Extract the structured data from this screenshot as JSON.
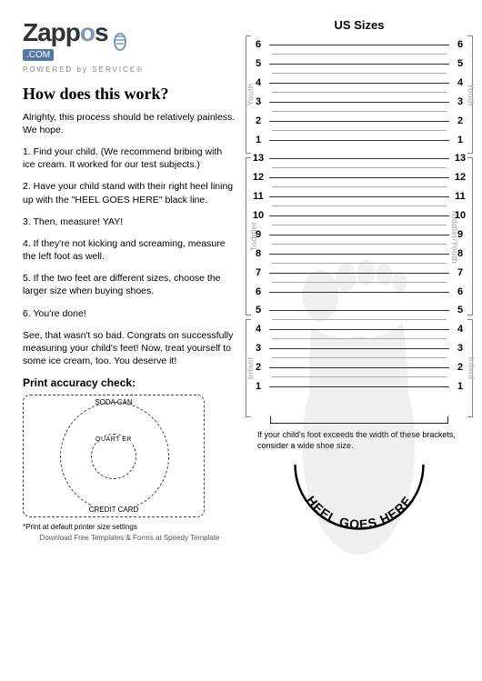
{
  "logo": {
    "brand": "Zapp",
    "accent_letter": "o",
    "brand_end": "s",
    "dotcom": ".COM",
    "tagline": "POWERED by SERVICE®"
  },
  "heading": "How does this work?",
  "intro": "Alrighty, this process should be relatively painless. We hope.",
  "steps": [
    "1. Find your child. (We recommend bribing with ice cream. It worked for our test subjects.)",
    "2. Have your child stand with their right heel lining up with the \"HEEL GOES HERE\" black line.",
    "3. Then, measure! YAY!",
    "4. If they're not kicking and screaming, measure the left foot as well.",
    "5. If the two feet are different sizes, choose the larger size when buying shoes.",
    "6. You're done!"
  ],
  "outro": "See, that wasn't so bad. Congrats on successfully measuring your child's feet! Now, treat yourself to some ice cream, too. You deserve it!",
  "accuracy": {
    "heading": "Print accuracy check:",
    "soda": "SODA CAN",
    "quarter": "QUART ER",
    "credit": "CREDIT CARD",
    "print_note": "*Print at default printer size settings",
    "download_note": "Download Free Templates & Forms at Speedy Template"
  },
  "sizes": {
    "title": "US Sizes",
    "sections": [
      {
        "label": "Youth",
        "values": [
          6,
          5,
          4,
          3,
          2,
          1
        ]
      },
      {
        "label": "Toddler",
        "right_label": "Toddler/Youth",
        "values": [
          13,
          12,
          11,
          10,
          9,
          8,
          7,
          6
        ]
      },
      {
        "label": "Infant",
        "right_label": "Infant",
        "values": [
          5,
          4,
          3,
          2,
          1
        ]
      }
    ],
    "width_note": "If your child's foot exceeds the width of these brackets, consider a wide shoe size.",
    "heel_text": "HEEL GOES HERE"
  },
  "colors": {
    "text": "#222222",
    "muted": "#bbbbbb",
    "logo_accent": "#7a99b8",
    "logo_box": "#5577aa",
    "half_line": "#aaaaaa"
  }
}
